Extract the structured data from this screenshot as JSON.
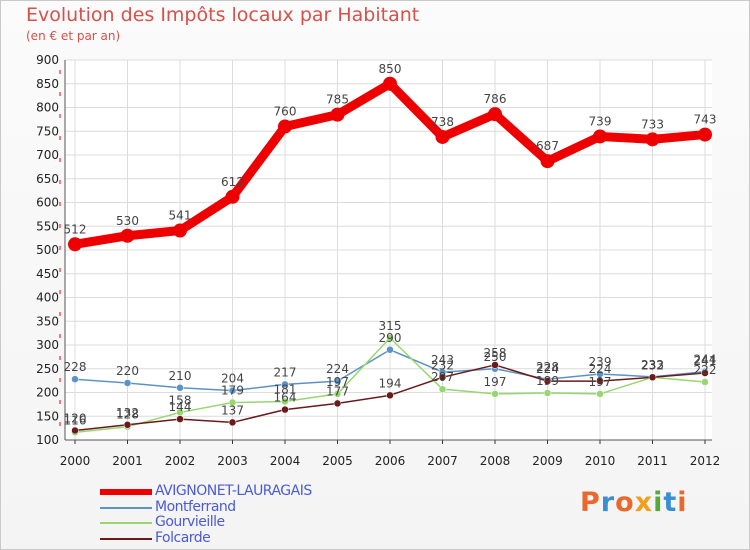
{
  "header": {
    "title": "Evolution des Impôts locaux par Habitant",
    "subtitle": "(en € et par an)"
  },
  "legend": {
    "items": [
      {
        "label": "AVIGNONET-LAURAGAIS",
        "color": "#ee0000"
      },
      {
        "label": "Montferrand",
        "color": "#5b93c7"
      },
      {
        "label": "Gourvieille",
        "color": "#97d76f"
      },
      {
        "label": "Folcarde",
        "color": "#6b1a1a"
      }
    ]
  },
  "brand": {
    "logo_text": "Proxiti",
    "logo_colors": [
      "#e8692b",
      "#3a8fd1",
      "#e8692b",
      "#f0a020",
      "#5aa83a",
      "#3a8fd1",
      "#e8692b"
    ]
  },
  "chart_data": {
    "type": "line",
    "x": [
      "2000",
      "2001",
      "2002",
      "2003",
      "2004",
      "2005",
      "2006",
      "2007",
      "2008",
      "2009",
      "2010",
      "2011",
      "2012"
    ],
    "ylim": [
      100,
      900
    ],
    "yticks": [
      "100",
      "150",
      "200",
      "250",
      "300",
      "350",
      "400",
      "450",
      "500",
      "550",
      "600",
      "650",
      "700",
      "750",
      "800",
      "850",
      "900"
    ],
    "grid": true,
    "series": [
      {
        "name": "AVIGNONET-LAURAGAIS",
        "color": "#ee0000",
        "values": [
          512,
          530,
          541,
          612,
          760,
          785,
          850,
          738,
          786,
          687,
          739,
          733,
          743
        ]
      },
      {
        "name": "Montferrand",
        "color": "#5b93c7",
        "values": [
          228,
          220,
          210,
          204,
          217,
          224,
          290,
          243,
          250,
          228,
          239,
          233,
          244
        ]
      },
      {
        "name": "Gourvieille",
        "color": "#97d76f",
        "values": [
          116,
          128,
          158,
          179,
          181,
          197,
          315,
          207,
          197,
          199,
          197,
          232,
          222
        ]
      },
      {
        "name": "Folcarde",
        "color": "#6b1a1a",
        "values": [
          120,
          132,
          144,
          137,
          164,
          177,
          194,
          232,
          258,
          224,
          224,
          232,
          241
        ]
      }
    ]
  }
}
